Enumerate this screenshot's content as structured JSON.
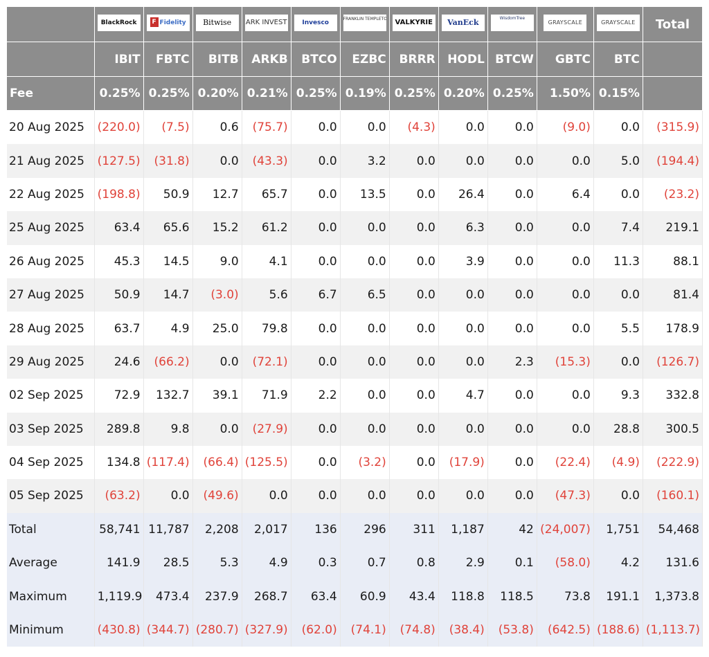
{
  "logos": [
    {
      "key": "blackrock",
      "text": "BlackRock",
      "icon": "blackrock-logo"
    },
    {
      "key": "fidelity",
      "text": "Fidelity",
      "icon": "fidelity-logo"
    },
    {
      "key": "bitwise",
      "text": "Bitwise",
      "icon": "bitwise-logo"
    },
    {
      "key": "ark",
      "text": "ARK INVEST",
      "icon": "ark-logo"
    },
    {
      "key": "invesco",
      "text": "Invesco",
      "icon": "invesco-logo"
    },
    {
      "key": "franklin",
      "text": "FRANKLIN TEMPLETON",
      "icon": "franklin-logo"
    },
    {
      "key": "valkyrie",
      "text": "VALKYRIE",
      "icon": "valkyrie-logo"
    },
    {
      "key": "vaneck",
      "text": "VanEck",
      "icon": "vaneck-logo"
    },
    {
      "key": "wisdomtree",
      "text": "WisdomTree",
      "icon": "wisdomtree-logo"
    },
    {
      "key": "grayscale1",
      "text": "GRAYSCALE",
      "icon": "grayscale-logo"
    },
    {
      "key": "grayscale2",
      "text": "GRAYSCALE",
      "icon": "grayscale-logo"
    }
  ],
  "header": {
    "total_label": "Total",
    "fee_label": "Fee",
    "tickers": [
      "IBIT",
      "FBTC",
      "BITB",
      "ARKB",
      "BTCO",
      "EZBC",
      "BRRR",
      "HODL",
      "BTCW",
      "GBTC",
      "BTC"
    ],
    "fees": [
      "0.25%",
      "0.25%",
      "0.20%",
      "0.21%",
      "0.25%",
      "0.19%",
      "0.25%",
      "0.20%",
      "0.25%",
      "1.50%",
      "0.15%"
    ]
  },
  "rows": [
    {
      "date": "20 Aug 2025",
      "values": [
        "(220.0)",
        "(7.5)",
        "0.6",
        "(75.7)",
        "0.0",
        "0.0",
        "(4.3)",
        "0.0",
        "0.0",
        "(9.0)",
        "0.0"
      ],
      "total": "(315.9)"
    },
    {
      "date": "21 Aug 2025",
      "values": [
        "(127.5)",
        "(31.8)",
        "0.0",
        "(43.3)",
        "0.0",
        "3.2",
        "0.0",
        "0.0",
        "0.0",
        "0.0",
        "5.0"
      ],
      "total": "(194.4)"
    },
    {
      "date": "22 Aug 2025",
      "values": [
        "(198.8)",
        "50.9",
        "12.7",
        "65.7",
        "0.0",
        "13.5",
        "0.0",
        "26.4",
        "0.0",
        "6.4",
        "0.0"
      ],
      "total": "(23.2)"
    },
    {
      "date": "25 Aug 2025",
      "values": [
        "63.4",
        "65.6",
        "15.2",
        "61.2",
        "0.0",
        "0.0",
        "0.0",
        "6.3",
        "0.0",
        "0.0",
        "7.4"
      ],
      "total": "219.1"
    },
    {
      "date": "26 Aug 2025",
      "values": [
        "45.3",
        "14.5",
        "9.0",
        "4.1",
        "0.0",
        "0.0",
        "0.0",
        "3.9",
        "0.0",
        "0.0",
        "11.3"
      ],
      "total": "88.1"
    },
    {
      "date": "27 Aug 2025",
      "values": [
        "50.9",
        "14.7",
        "(3.0)",
        "5.6",
        "6.7",
        "6.5",
        "0.0",
        "0.0",
        "0.0",
        "0.0",
        "0.0"
      ],
      "total": "81.4"
    },
    {
      "date": "28 Aug 2025",
      "values": [
        "63.7",
        "4.9",
        "25.0",
        "79.8",
        "0.0",
        "0.0",
        "0.0",
        "0.0",
        "0.0",
        "0.0",
        "5.5"
      ],
      "total": "178.9"
    },
    {
      "date": "29 Aug 2025",
      "values": [
        "24.6",
        "(66.2)",
        "0.0",
        "(72.1)",
        "0.0",
        "0.0",
        "0.0",
        "0.0",
        "2.3",
        "(15.3)",
        "0.0"
      ],
      "total": "(126.7)"
    },
    {
      "date": "02 Sep 2025",
      "values": [
        "72.9",
        "132.7",
        "39.1",
        "71.9",
        "2.2",
        "0.0",
        "0.0",
        "4.7",
        "0.0",
        "0.0",
        "9.3"
      ],
      "total": "332.8"
    },
    {
      "date": "03 Sep 2025",
      "values": [
        "289.8",
        "9.8",
        "0.0",
        "(27.9)",
        "0.0",
        "0.0",
        "0.0",
        "0.0",
        "0.0",
        "0.0",
        "28.8"
      ],
      "total": "300.5"
    },
    {
      "date": "04 Sep 2025",
      "values": [
        "134.8",
        "(117.4)",
        "(66.4)",
        "(125.5)",
        "0.0",
        "(3.2)",
        "0.0",
        "(17.9)",
        "0.0",
        "(22.4)",
        "(4.9)"
      ],
      "total": "(222.9)"
    },
    {
      "date": "05 Sep 2025",
      "values": [
        "(63.2)",
        "0.0",
        "(49.6)",
        "0.0",
        "0.0",
        "0.0",
        "0.0",
        "0.0",
        "0.0",
        "(47.3)",
        "0.0"
      ],
      "total": "(160.1)"
    }
  ],
  "stats": [
    {
      "label": "Total",
      "values": [
        "58,741",
        "11,787",
        "2,208",
        "2,017",
        "136",
        "296",
        "311",
        "1,187",
        "42",
        "(24,007)",
        "1,751"
      ],
      "total": "54,468"
    },
    {
      "label": "Average",
      "values": [
        "141.9",
        "28.5",
        "5.3",
        "4.9",
        "0.3",
        "0.7",
        "0.8",
        "2.9",
        "0.1",
        "(58.0)",
        "4.2"
      ],
      "total": "131.6"
    },
    {
      "label": "Maximum",
      "values": [
        "1,119.9",
        "473.4",
        "237.9",
        "268.7",
        "63.4",
        "60.9",
        "43.4",
        "118.8",
        "118.5",
        "73.8",
        "191.1"
      ],
      "total": "1,373.8"
    },
    {
      "label": "Minimum",
      "values": [
        "(430.8)",
        "(344.7)",
        "(280.7)",
        "(327.9)",
        "(62.0)",
        "(74.1)",
        "(74.8)",
        "(38.4)",
        "(53.8)",
        "(642.5)",
        "(188.6)"
      ],
      "total": "(1,113.7)"
    }
  ],
  "colors": {
    "header_bg": "#8d8d8d",
    "negative": "#e0433a",
    "stats_bg": "#e9edf6",
    "row_alt": "#f1f1f1"
  }
}
